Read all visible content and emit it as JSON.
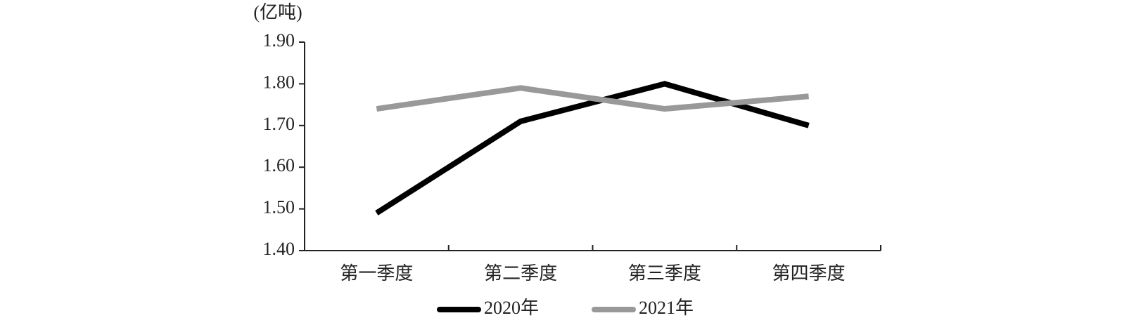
{
  "chart_data": {
    "type": "line",
    "y_label": "(亿吨)",
    "categories": [
      "第一季度",
      "第二季度",
      "第三季度",
      "第四季度"
    ],
    "series": [
      {
        "name": "2020年",
        "color": "#000000",
        "values": [
          1.49,
          1.71,
          1.8,
          1.7
        ]
      },
      {
        "name": "2021年",
        "color": "#999999",
        "values": [
          1.74,
          1.79,
          1.74,
          1.77
        ]
      }
    ],
    "ylim": [
      1.4,
      1.9
    ],
    "yticks": [
      {
        "value": 1.4,
        "label": "1.40"
      },
      {
        "value": 1.5,
        "label": "1.50"
      },
      {
        "value": 1.6,
        "label": "1.60"
      },
      {
        "value": 1.7,
        "label": "1.70"
      },
      {
        "value": 1.8,
        "label": "1.80"
      },
      {
        "value": 1.9,
        "label": "1.90"
      }
    ],
    "grid": false,
    "legend": "bottom"
  }
}
